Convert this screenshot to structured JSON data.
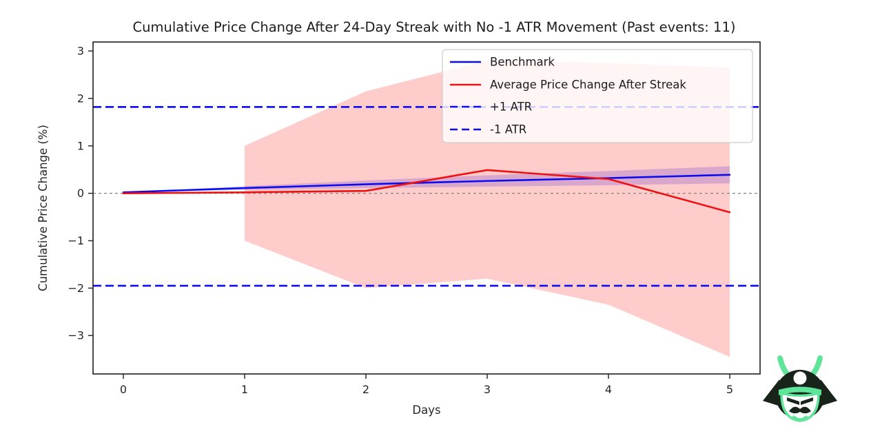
{
  "chart_data": {
    "type": "line",
    "title": "Cumulative Price Change After 24-Day Streak with No -1 ATR Movement (Past events: 11)",
    "xlabel": "Days",
    "ylabel": "Cumulative Price Change (%)",
    "xlim": [
      -0.25,
      5.25
    ],
    "ylim": [
      -3.81,
      3.19
    ],
    "grid": false,
    "legend_position": "upper right",
    "xticks": [
      {
        "v": 0,
        "label": "0"
      },
      {
        "v": 1,
        "label": "1"
      },
      {
        "v": 2,
        "label": "2"
      },
      {
        "v": 3,
        "label": "3"
      },
      {
        "v": 4,
        "label": "4"
      },
      {
        "v": 5,
        "label": "5"
      }
    ],
    "yticks": [
      {
        "v": -3,
        "label": "−3"
      },
      {
        "v": -2,
        "label": "−2"
      },
      {
        "v": -1,
        "label": "−1"
      },
      {
        "v": 0,
        "label": "0"
      },
      {
        "v": 1,
        "label": "1"
      },
      {
        "v": 2,
        "label": "2"
      },
      {
        "v": 3,
        "label": "3"
      }
    ],
    "x": [
      0,
      1,
      2,
      3,
      4,
      5
    ],
    "series": [
      {
        "name": "Benchmark",
        "color": "#0b0bee",
        "dash": false,
        "width": 2.6,
        "values": [
          0.02,
          0.11,
          0.19,
          0.26,
          0.32,
          0.39
        ]
      },
      {
        "name": "Average Price Change After Streak",
        "color": "#ee1111",
        "dash": false,
        "width": 2.6,
        "values": [
          0.0,
          0.02,
          0.05,
          0.49,
          0.3,
          -0.4
        ]
      }
    ],
    "bands": [
      {
        "name": "benchmark-std-band",
        "color": "rgba(0,0,255,0.18)",
        "x": [
          0,
          1,
          2,
          3,
          4,
          5
        ],
        "upper": [
          0.02,
          0.15,
          0.27,
          0.38,
          0.47,
          0.57
        ],
        "lower": [
          0.02,
          0.07,
          0.11,
          0.14,
          0.17,
          0.21
        ]
      },
      {
        "name": "streak-std-band",
        "color": "rgba(255,0,0,0.2)",
        "x": [
          1,
          2,
          3,
          4,
          5
        ],
        "upper": [
          1.0,
          2.15,
          2.8,
          2.75,
          2.65
        ],
        "lower": [
          -1.0,
          -2.0,
          -1.8,
          -2.35,
          -3.45
        ]
      }
    ],
    "hlines": [
      {
        "name": "zero-line",
        "y": 0,
        "color": "#8a8a8a",
        "dash": "4 4",
        "width": 1.4
      },
      {
        "name": "plus-1-atr-line",
        "y": 1.82,
        "color": "#0b0bee",
        "dash": "12 6",
        "width": 2.6
      },
      {
        "name": "minus-1-atr-line",
        "y": -1.95,
        "color": "#0b0bee",
        "dash": "12 6",
        "width": 2.6
      }
    ],
    "legend": [
      {
        "label": "Benchmark",
        "color": "#0b0bee",
        "dash": false
      },
      {
        "label": "Average Price Change After Streak",
        "color": "#ee1111",
        "dash": false
      },
      {
        "label": "+1 ATR",
        "color": "#0b0bee",
        "dash": true
      },
      {
        "label": "-1 ATR",
        "color": "#0b0bee",
        "dash": true
      }
    ]
  },
  "logo": {
    "name": "samurai-mask",
    "dark_color": "#18231a",
    "accent_color": "#5fe49a"
  }
}
